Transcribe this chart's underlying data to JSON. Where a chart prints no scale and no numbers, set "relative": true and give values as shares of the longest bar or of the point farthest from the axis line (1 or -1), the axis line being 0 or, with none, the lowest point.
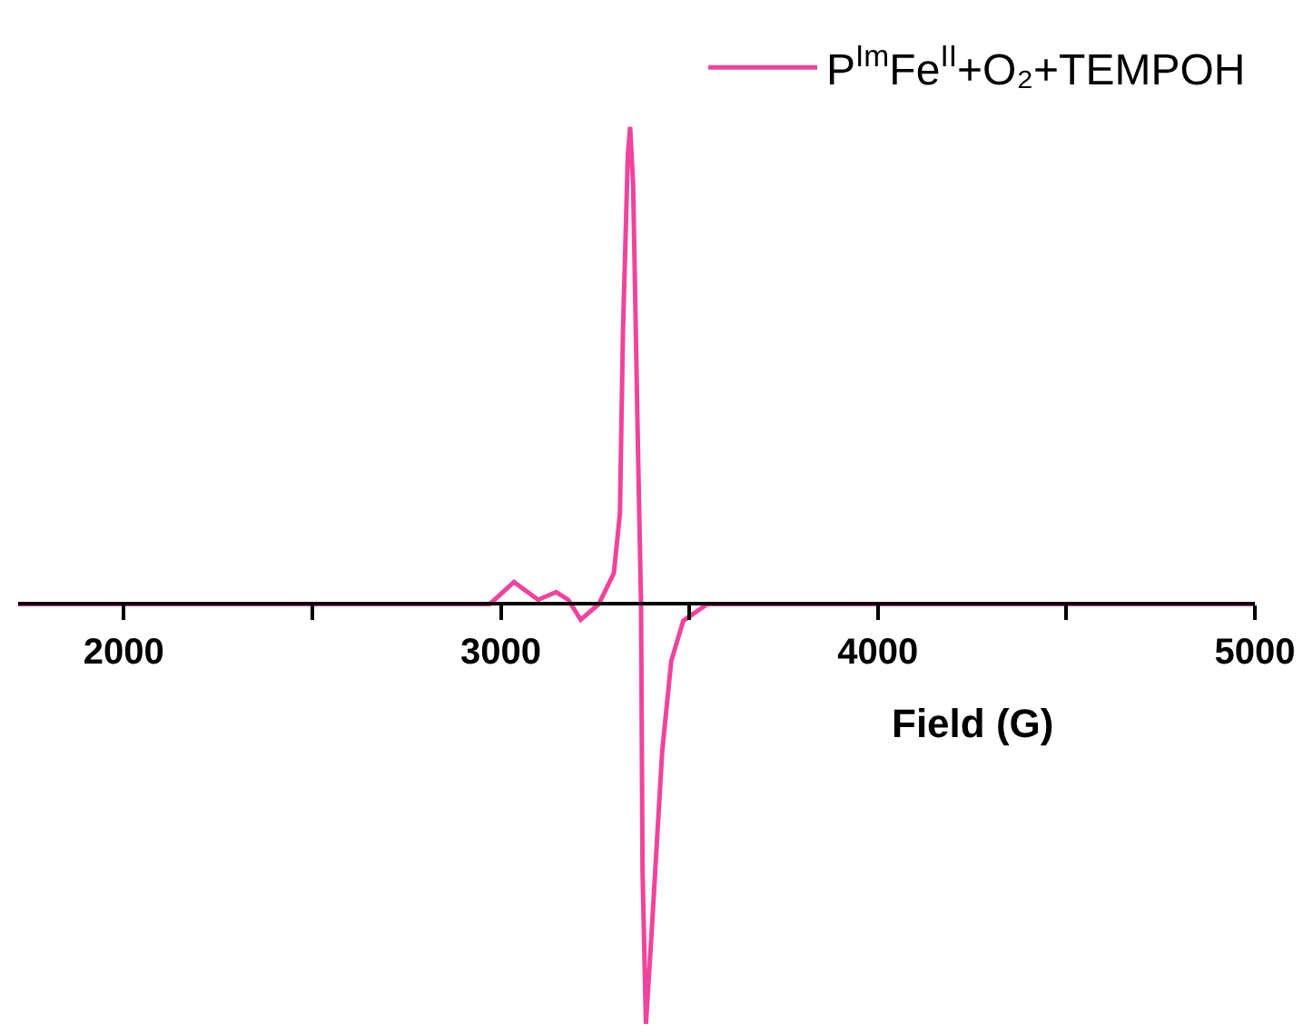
{
  "chart_data": {
    "type": "line",
    "relative": true,
    "xlabel": "Field (G)",
    "x": [
      1720,
      2971,
      3035,
      3099,
      3147,
      3179,
      3212,
      3260,
      3300,
      3316,
      3324,
      3337,
      3343,
      3351,
      3364,
      3372,
      3376,
      3385,
      3400,
      3428,
      3452,
      3484,
      3548,
      5000
    ],
    "series": [
      {
        "name": "P$^{Im}$Fe$^{II}$+O₂+TEMPOH",
        "color": "#f0449c",
        "values": [
          0,
          0,
          0.046,
          0.009,
          0.025,
          0.009,
          -0.033,
          0,
          0.065,
          0.19,
          0.57,
          0.94,
          1,
          0.88,
          0.32,
          0,
          -0.56,
          -0.88,
          -0.69,
          -0.31,
          -0.12,
          -0.035,
          0,
          0
        ]
      }
    ],
    "xlim": [
      1720,
      5000
    ],
    "xticks": [
      2000,
      {
        "value": 2500,
        "label": null
      },
      3000,
      {
        "value": 3500,
        "label": null
      },
      4000,
      {
        "value": 4500,
        "label": null
      },
      5000
    ],
    "legend": "top right",
    "marker": "none",
    "line_style": "solid"
  }
}
